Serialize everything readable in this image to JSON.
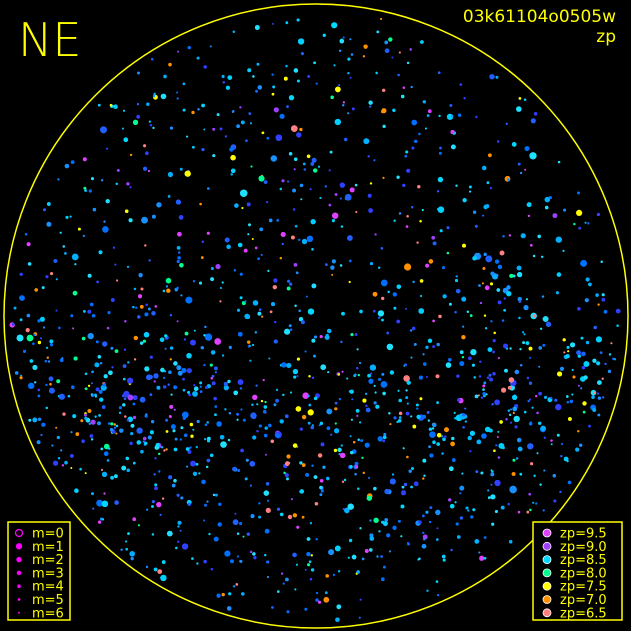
{
  "header": {
    "direction": "NE",
    "image_id": "03k61104o0505w",
    "mode": "zp"
  },
  "magnitude_legend": {
    "entries": [
      "m=0",
      "m=1",
      "m=2",
      "m=3",
      "m=4",
      "m=5",
      "m=6"
    ]
  },
  "zp_legend": {
    "entries": [
      {
        "label": "zp=9.5",
        "color": "#e040ff"
      },
      {
        "label": "zp=9.0",
        "color": "#a040ff"
      },
      {
        "label": "zp=8.5",
        "color": "#00d8ff"
      },
      {
        "label": "zp=8.0",
        "color": "#00ff90"
      },
      {
        "label": "zp=7.5",
        "color": "#ffff00"
      },
      {
        "label": "zp=7.0",
        "color": "#ff9000"
      },
      {
        "label": "zp=6.5",
        "color": "#ff8080"
      }
    ]
  }
}
